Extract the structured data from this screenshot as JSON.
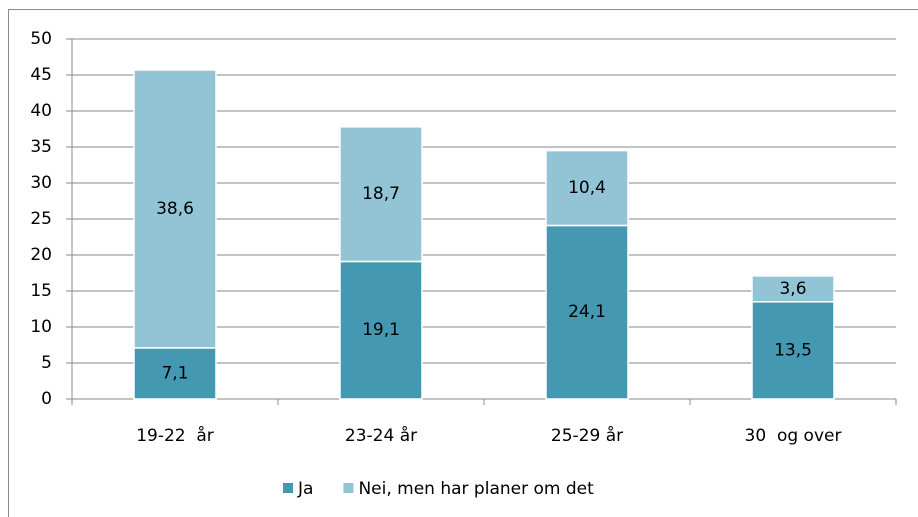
{
  "chart_data": {
    "type": "stacked_bar",
    "categories": [
      "19-22  år",
      "23-24 år",
      "25-29 år",
      "30  og over"
    ],
    "series": [
      {
        "name": "Ja",
        "color": "#4598b1",
        "values": [
          7.1,
          19.1,
          24.1,
          13.5
        ],
        "value_labels": [
          "7,1",
          "19,1",
          "24,1",
          "13,5"
        ]
      },
      {
        "name": "Nei, men har planer om det",
        "color": "#93c4d5",
        "values": [
          38.6,
          18.7,
          10.4,
          3.6
        ],
        "value_labels": [
          "38,6",
          "18,7",
          "10,4",
          "3,6"
        ]
      }
    ],
    "ylim": [
      0,
      50
    ],
    "yticks": [
      0,
      5,
      10,
      15,
      20,
      25,
      30,
      35,
      40,
      45,
      50
    ],
    "grid": true,
    "legend": "bottom"
  }
}
